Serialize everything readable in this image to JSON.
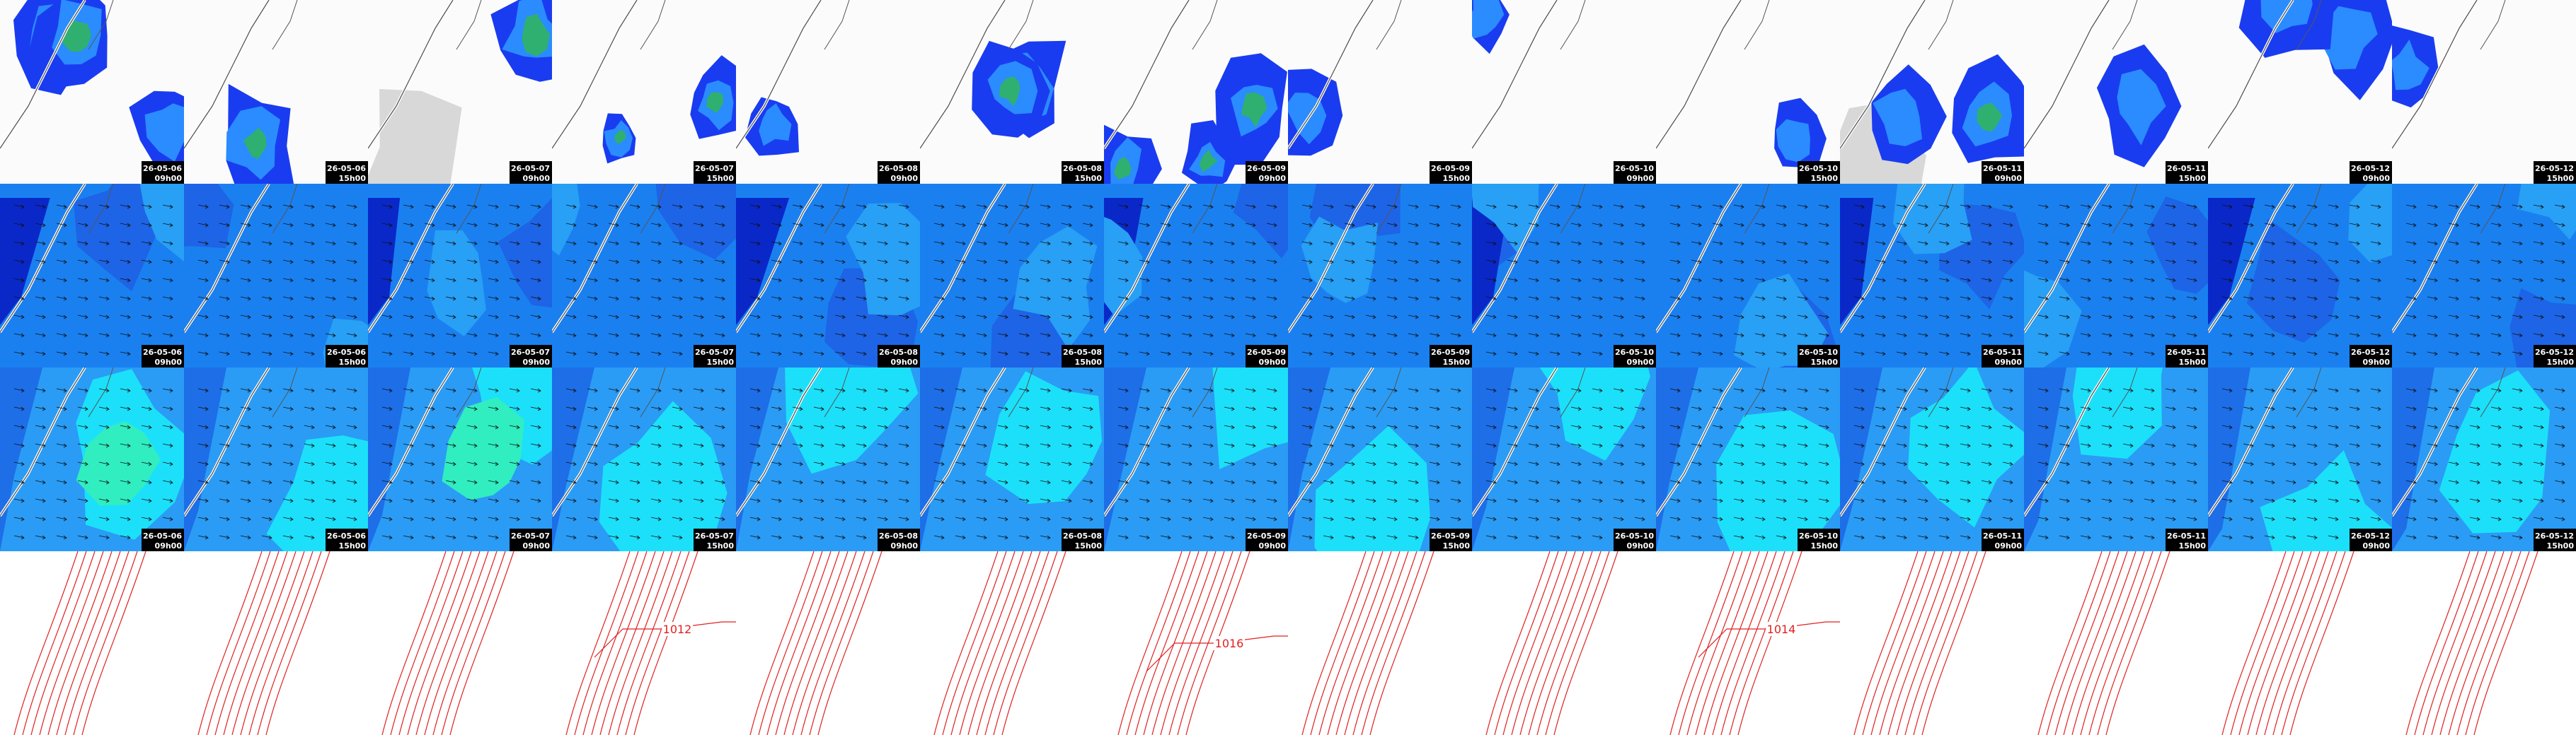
{
  "columns": [
    {
      "date": "26-05-06",
      "time": "09h00"
    },
    {
      "date": "26-05-06",
      "time": "15h00"
    },
    {
      "date": "26-05-07",
      "time": "09h00"
    },
    {
      "date": "26-05-07",
      "time": "15h00"
    },
    {
      "date": "26-05-08",
      "time": "09h00"
    },
    {
      "date": "26-05-08",
      "time": "15h00"
    },
    {
      "date": "26-05-09",
      "time": "09h00"
    },
    {
      "date": "26-05-09",
      "time": "15h00"
    },
    {
      "date": "26-05-10",
      "time": "09h00"
    },
    {
      "date": "26-05-10",
      "time": "15h00"
    },
    {
      "date": "26-05-11",
      "time": "09h00"
    },
    {
      "date": "26-05-11",
      "time": "15h00"
    },
    {
      "date": "26-05-12",
      "time": "09h00"
    },
    {
      "date": "26-05-12",
      "time": "15h00"
    }
  ],
  "isobar_labels": [
    "1012",
    "1016",
    "1014"
  ]
}
